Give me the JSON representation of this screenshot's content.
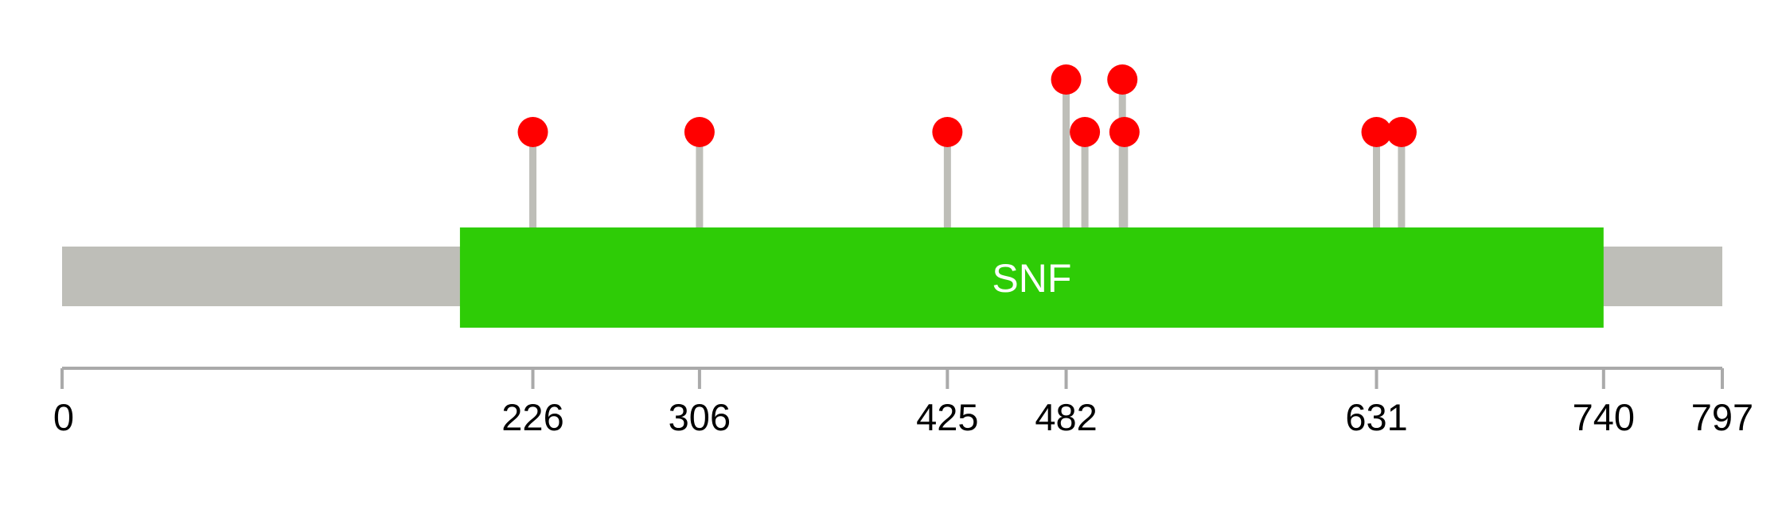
{
  "protein": {
    "length": 797,
    "backbone_color": "#bebeb8"
  },
  "domains": [
    {
      "label": "SNF",
      "start": 191,
      "end": 740,
      "color": "#2ecc06"
    }
  ],
  "mutations": [
    {
      "position": 226,
      "count": 1
    },
    {
      "position": 306,
      "count": 1
    },
    {
      "position": 425,
      "count": 1
    },
    {
      "position": 482,
      "count": 2
    },
    {
      "position": 491,
      "count": 1
    },
    {
      "position": 509,
      "count": 2
    },
    {
      "position": 510,
      "count": 1
    },
    {
      "position": 631,
      "count": 1
    },
    {
      "position": 643,
      "count": 1
    }
  ],
  "mutation_color": "#ff0000",
  "stem_color": "#bebeb8",
  "axis": {
    "color": "#aaaaaa",
    "ticks": [
      0,
      226,
      306,
      425,
      482,
      631,
      740,
      797
    ]
  }
}
